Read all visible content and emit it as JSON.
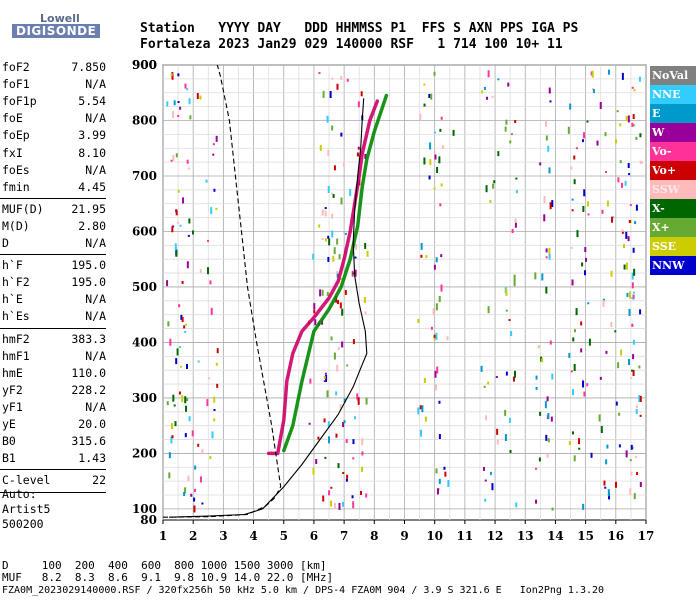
{
  "logo": {
    "top": "Lowell",
    "bottom": "DIGISONDE"
  },
  "header": {
    "row1": "Station   YYYY DAY   DDD HHMMSS P1  FFS S AXN PPS IGA PS",
    "row2": "Fortaleza 2023 Jan29 029 140000 RSF   1 714 100 10+ 11"
  },
  "params": [
    {
      "name": "foF2",
      "value": "7.850"
    },
    {
      "name": "foF1",
      "value": "N/A"
    },
    {
      "name": "foF1p",
      "value": "5.54"
    },
    {
      "name": "foE",
      "value": "N/A"
    },
    {
      "name": "foEp",
      "value": "3.99"
    },
    {
      "name": "fxI",
      "value": "8.10"
    },
    {
      "name": "foEs",
      "value": "N/A"
    },
    {
      "name": "fmin",
      "value": "4.45"
    },
    {
      "name": "MUF(D)",
      "value": "21.95"
    },
    {
      "name": "M(D)",
      "value": "2.80"
    },
    {
      "name": "D",
      "value": "N/A"
    },
    {
      "name": "h`F",
      "value": "195.0"
    },
    {
      "name": "h`F2",
      "value": "195.0"
    },
    {
      "name": "h`E",
      "value": "N/A"
    },
    {
      "name": "h`Es",
      "value": "N/A"
    },
    {
      "name": "hmF2",
      "value": "383.3"
    },
    {
      "name": "hmF1",
      "value": "N/A"
    },
    {
      "name": "hmE",
      "value": "110.0"
    },
    {
      "name": "yF2",
      "value": "228.2"
    },
    {
      "name": "yF1",
      "value": "N/A"
    },
    {
      "name": "yE",
      "value": "20.0"
    },
    {
      "name": "B0",
      "value": "315.6"
    },
    {
      "name": "B1",
      "value": "1.43"
    },
    {
      "name": "C-level",
      "value": "22"
    }
  ],
  "auto": {
    "line1": "Auto:",
    "line2": "Artist5",
    "line3": "500200"
  },
  "legend": [
    {
      "label": "NoVal",
      "color": "#808080"
    },
    {
      "label": "NNE",
      "color": "#33ccff"
    },
    {
      "label": "E",
      "color": "#0099cc"
    },
    {
      "label": "W",
      "color": "#990099"
    },
    {
      "label": "Vo-",
      "color": "#ff3399"
    },
    {
      "label": "Vo+",
      "color": "#cc0000"
    },
    {
      "label": "SSW",
      "color": "#ffbbbb"
    },
    {
      "label": "X-",
      "color": "#006600"
    },
    {
      "label": "X+",
      "color": "#66aa33"
    },
    {
      "label": "SSE",
      "color": "#cccc00"
    },
    {
      "label": "NNW",
      "color": "#0000cc"
    }
  ],
  "footer": {
    "d_row": "D     100  200  400  600  800 1000 1500 3000 [km]",
    "muf_row": "MUF   8.2  8.3  8.6  9.1  9.8 10.9 14.0 22.0 [MHz]",
    "file_row": "FZA0M_2023029140000.RSF / 320fx256h 50 kHz 5.0 km / DPS-4 FZA0M 904 / 3.9 S 321.6 E   Ion2Png 1.3.20"
  },
  "chart_data": {
    "type": "scatter",
    "xlim": [
      1,
      17
    ],
    "ylim": [
      80,
      900
    ],
    "x_ticks": [
      "1",
      "2",
      "3",
      "4",
      "5",
      "6",
      "7",
      "8",
      "9",
      "10",
      "11",
      "12",
      "13",
      "14",
      "15",
      "16",
      "17"
    ],
    "y_ticks": [
      "100",
      "200",
      "300",
      "400",
      "500",
      "600",
      "700",
      "800",
      "900"
    ],
    "grid": true,
    "traces": [
      {
        "name": "o-trace",
        "color": "#cc0066",
        "points": [
          [
            4.5,
            200
          ],
          [
            4.8,
            200
          ],
          [
            5.0,
            260
          ],
          [
            5.1,
            330
          ],
          [
            5.3,
            380
          ],
          [
            5.6,
            420
          ],
          [
            6.0,
            445
          ],
          [
            6.5,
            480
          ],
          [
            6.8,
            510
          ],
          [
            7.0,
            550
          ],
          [
            7.2,
            600
          ],
          [
            7.35,
            650
          ],
          [
            7.5,
            700
          ],
          [
            7.6,
            740
          ],
          [
            7.85,
            800
          ],
          [
            8.1,
            835
          ]
        ]
      },
      {
        "name": "x-trace",
        "color": "#008800",
        "points": [
          [
            5.0,
            205
          ],
          [
            5.3,
            250
          ],
          [
            5.6,
            330
          ],
          [
            6.0,
            420
          ],
          [
            6.5,
            460
          ],
          [
            6.9,
            500
          ],
          [
            7.2,
            550
          ],
          [
            7.45,
            610
          ],
          [
            7.6,
            680
          ],
          [
            7.75,
            730
          ],
          [
            8.0,
            780
          ],
          [
            8.4,
            845
          ]
        ]
      },
      {
        "name": "profile-solid",
        "color": "#000000",
        "points": [
          [
            1.2,
            85
          ],
          [
            2.5,
            87
          ],
          [
            3.7,
            90
          ],
          [
            4.3,
            100
          ],
          [
            5.0,
            140
          ],
          [
            5.6,
            180
          ],
          [
            6.2,
            225
          ],
          [
            6.8,
            270
          ],
          [
            7.3,
            320
          ],
          [
            7.6,
            360
          ],
          [
            7.75,
            380
          ],
          [
            7.7,
            420
          ],
          [
            7.5,
            470
          ],
          [
            7.35,
            520
          ],
          [
            7.3,
            580
          ],
          [
            7.35,
            640
          ],
          [
            7.45,
            700
          ],
          [
            7.55,
            750
          ],
          [
            7.6,
            800
          ],
          [
            7.65,
            840
          ]
        ]
      },
      {
        "name": "profile-dashed",
        "color": "#000000",
        "points": [
          [
            1.0,
            85
          ],
          [
            2.5,
            86
          ],
          [
            3.8,
            90
          ],
          [
            4.4,
            105
          ],
          [
            4.7,
            120
          ],
          [
            4.9,
            140
          ],
          [
            4.6,
            250
          ],
          [
            4.1,
            400
          ],
          [
            3.8,
            500
          ],
          [
            3.6,
            600
          ],
          [
            3.4,
            700
          ],
          [
            3.2,
            800
          ],
          [
            2.9,
            880
          ],
          [
            2.8,
            900
          ]
        ]
      }
    ]
  }
}
